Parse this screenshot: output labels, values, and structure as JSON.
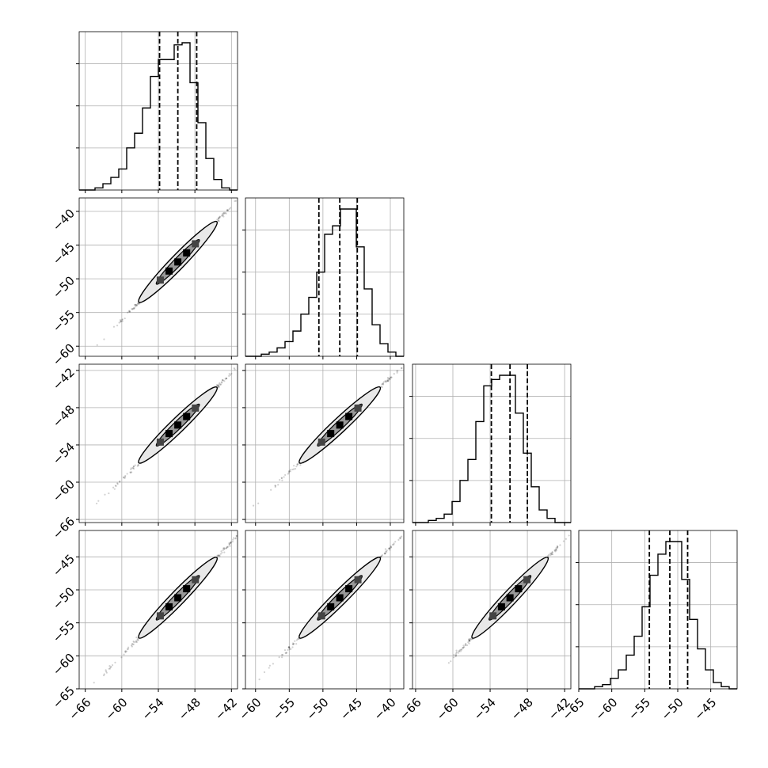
{
  "chart_data": {
    "type": "corner",
    "grid": true,
    "parameters": [
      {
        "range": [
          -67,
          -41
        ],
        "ticks": [
          -66,
          -60,
          -54,
          -48,
          -42
        ],
        "tick_labels": [
          "−66",
          "−60",
          "−54",
          "−48",
          "−42"
        ],
        "quantile_lines": [
          -53.8,
          -50.8,
          -47.7
        ],
        "hist": {
          "bins": [
            -67,
            -65.7,
            -64.4,
            -63.1,
            -61.8,
            -60.5,
            -59.2,
            -57.9,
            -56.6,
            -55.3,
            -54.0,
            -52.7,
            -51.4,
            -50.1,
            -48.8,
            -47.5,
            -46.2,
            -44.9,
            -43.6,
            -42.3,
            -41.0
          ],
          "counts": [
            0,
            0,
            1,
            3,
            6,
            10,
            20,
            27,
            39,
            54,
            62,
            62,
            69,
            70,
            51,
            32,
            15,
            5,
            1,
            0
          ]
        }
      },
      {
        "range": [
          -61.5,
          -38
        ],
        "ticks": [
          -60,
          -55,
          -50,
          -45,
          -40
        ],
        "tick_labels": [
          "−60",
          "−55",
          "−50",
          "−45",
          "−40"
        ],
        "quantile_lines": [
          -50.6,
          -47.5,
          -44.9
        ],
        "hist": {
          "bins": [
            -61.5,
            -60.325,
            -59.15,
            -57.975,
            -56.8,
            -55.625,
            -54.45,
            -53.275,
            -52.1,
            -50.925,
            -49.75,
            -48.575,
            -47.4,
            -46.225,
            -45.05,
            -43.875,
            -42.7,
            -41.525,
            -40.35,
            -39.175,
            -38.0
          ],
          "counts": [
            0,
            0,
            1,
            2,
            4,
            7,
            12,
            20,
            28,
            40,
            58,
            62,
            70,
            70,
            52,
            32,
            15,
            6,
            2,
            0
          ]
        }
      },
      {
        "range": [
          -66.5,
          -41
        ],
        "ticks": [
          -66,
          -60,
          -54,
          -48,
          -42
        ],
        "tick_labels": [
          "−66",
          "−60",
          "−54",
          "−48",
          "−42"
        ],
        "quantile_lines": [
          -53.8,
          -50.8,
          -48.0
        ],
        "hist": {
          "bins": [
            -66.5,
            -65.225,
            -63.95,
            -62.675,
            -61.4,
            -60.125,
            -58.85,
            -57.575,
            -56.3,
            -55.025,
            -53.75,
            -52.475,
            -51.2,
            -49.925,
            -48.65,
            -47.375,
            -46.1,
            -44.825,
            -43.55,
            -42.275,
            -41.0
          ],
          "counts": [
            0,
            0,
            1,
            2,
            4,
            10,
            20,
            30,
            48,
            65,
            68,
            70,
            70,
            52,
            33,
            17,
            6,
            2,
            0,
            0
          ]
        }
      },
      {
        "range": [
          -65,
          -41
        ],
        "ticks": [
          -65,
          -60,
          -55,
          -50,
          -45
        ],
        "tick_labels": [
          "−65",
          "−60",
          "−55",
          "−50",
          "−45"
        ],
        "quantile_lines": [
          -54.3,
          -51.2,
          -48.5
        ],
        "hist": {
          "bins": [
            -65,
            -63.8,
            -62.6,
            -61.4,
            -60.2,
            -59.0,
            -57.8,
            -56.6,
            -55.4,
            -54.2,
            -53.0,
            -51.8,
            -50.6,
            -49.4,
            -48.2,
            -47.0,
            -45.8,
            -44.6,
            -43.4,
            -42.2,
            -41.0
          ],
          "counts": [
            0,
            0,
            1,
            2,
            5,
            9,
            16,
            25,
            39,
            54,
            64,
            70,
            70,
            52,
            33,
            19,
            9,
            3,
            1,
            0
          ]
        }
      }
    ]
  }
}
